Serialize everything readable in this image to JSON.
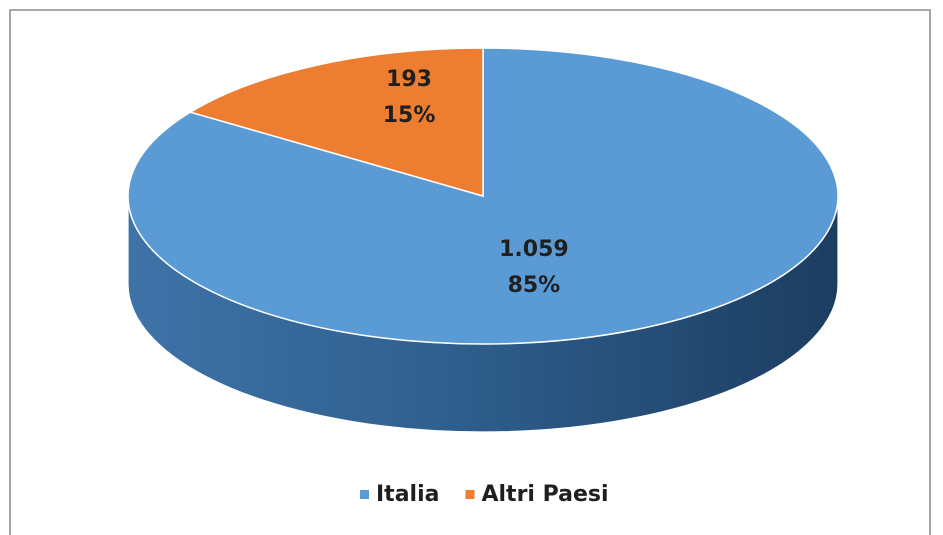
{
  "chart_data": {
    "type": "pie3d",
    "categories": [
      "Italia",
      "Altri Paesi"
    ],
    "values": [
      1059,
      193
    ],
    "value_labels": [
      "1.059",
      "193"
    ],
    "percent_labels": [
      "85%",
      "15%"
    ],
    "colors": [
      "#5b9bd5",
      "#ed7d31"
    ],
    "legend": "bottom"
  }
}
